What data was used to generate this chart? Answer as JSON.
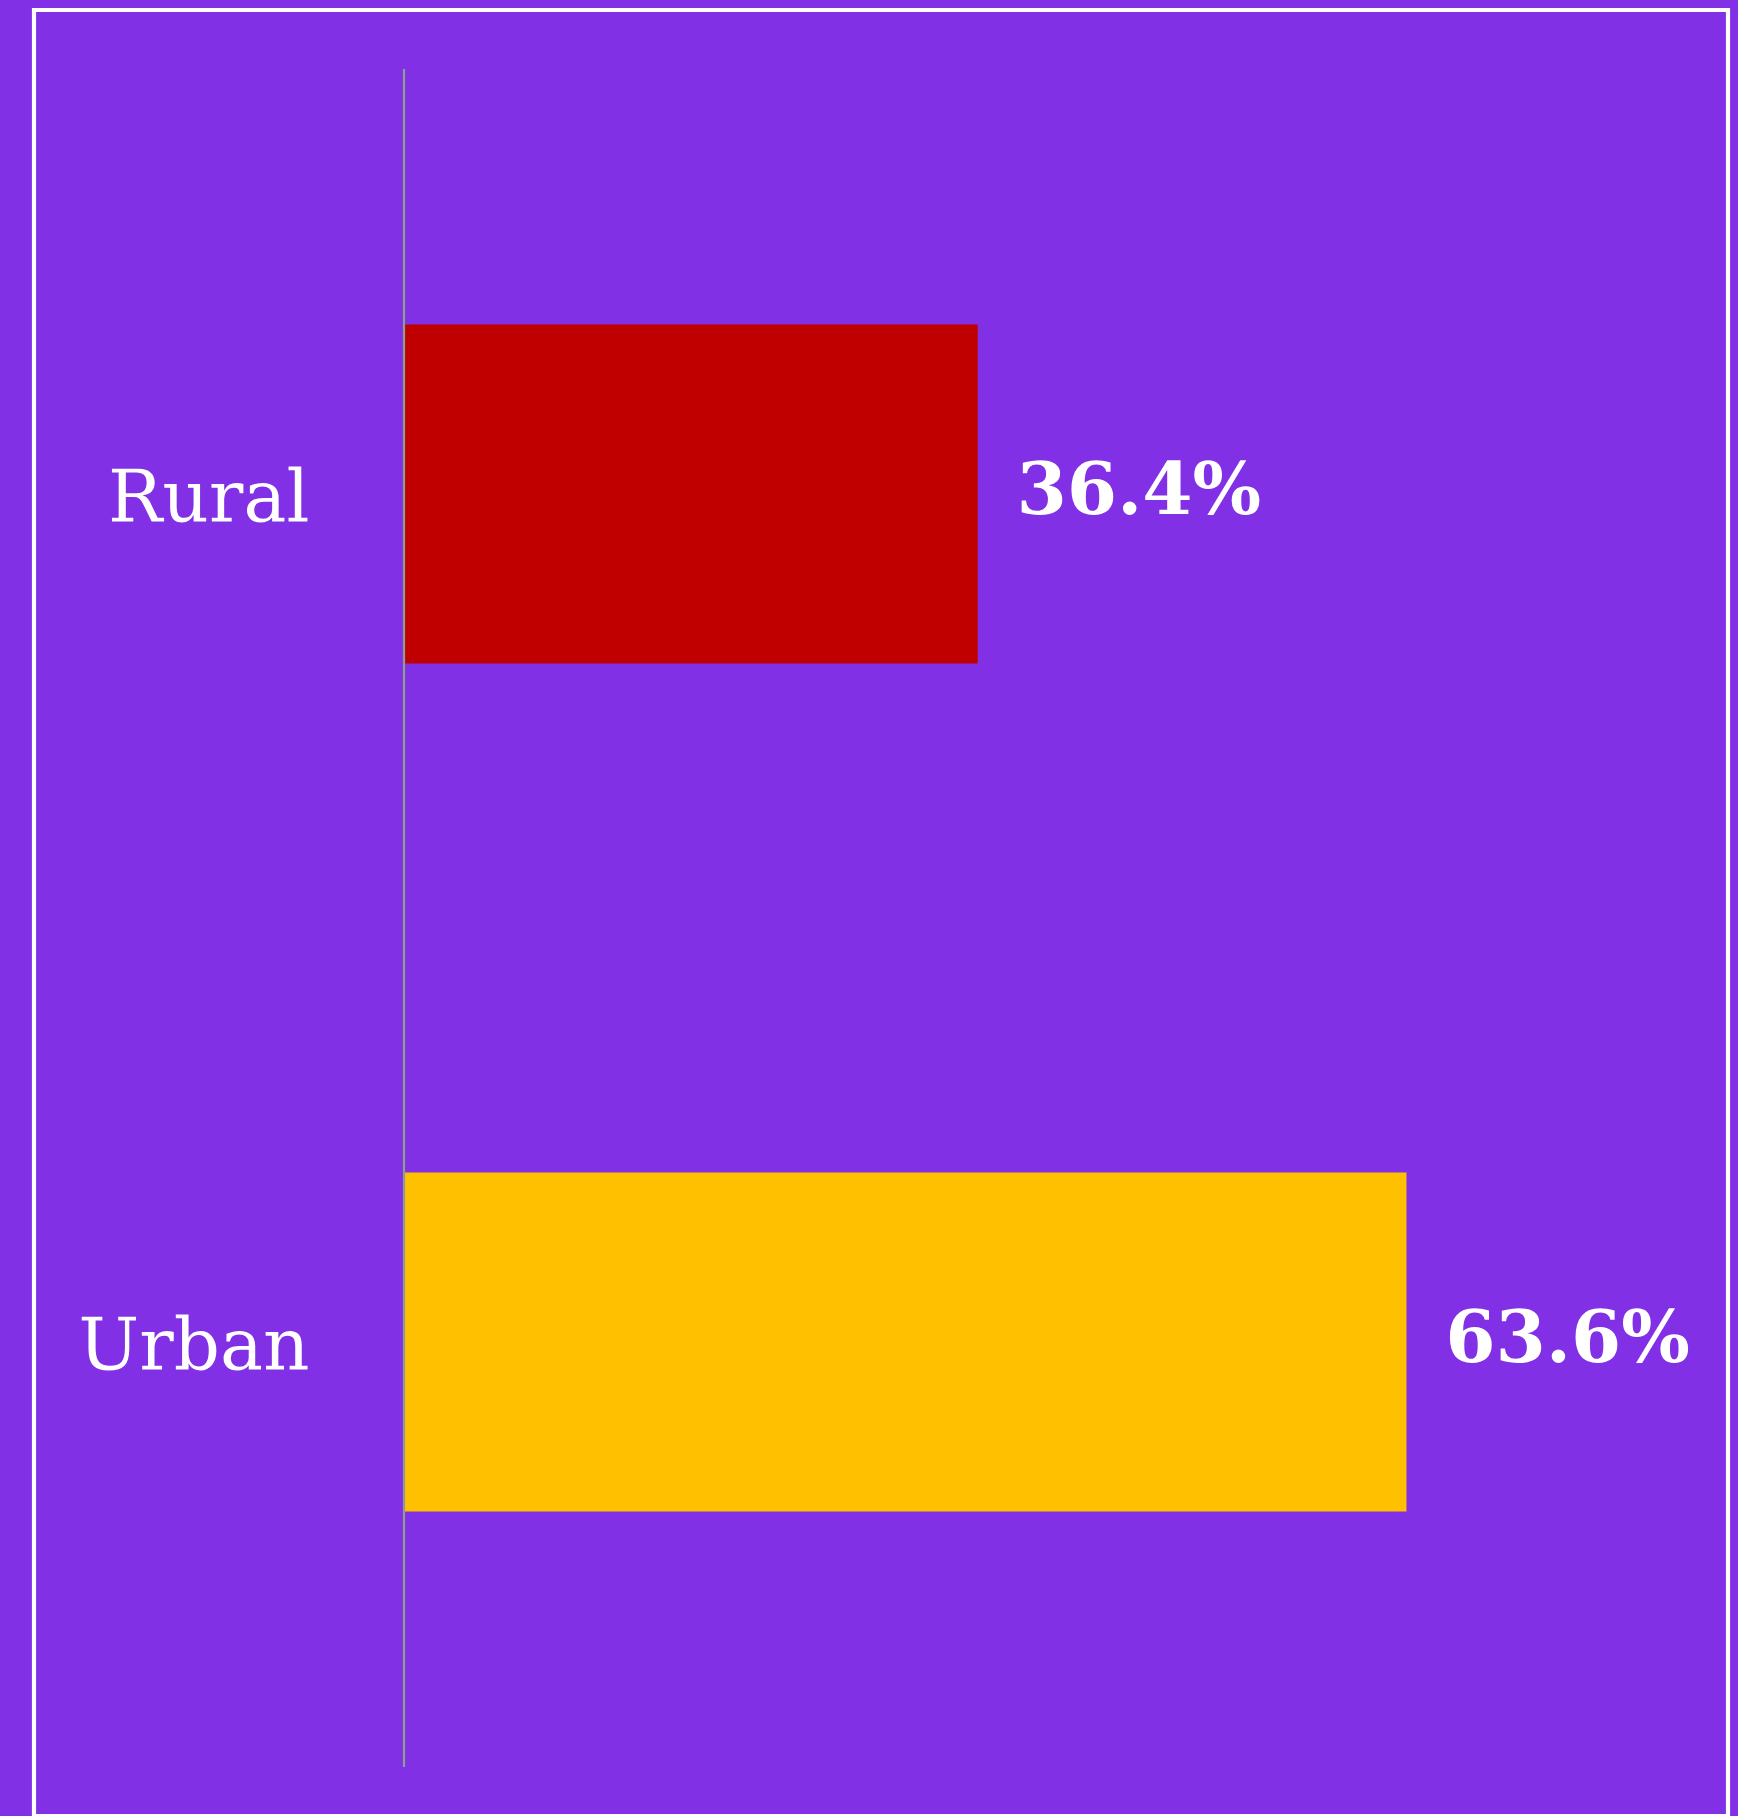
{
  "chart_data": {
    "type": "bar",
    "orientation": "horizontal",
    "categories": [
      "Rural",
      "Urban"
    ],
    "values": [
      36.4,
      63.6
    ],
    "colors": [
      "#c00000",
      "#ffc000"
    ],
    "value_labels": [
      "36.4%",
      "63.6%"
    ],
    "xlim": [
      0,
      84
    ],
    "tick_labels": "y",
    "grid": false,
    "legend": false
  }
}
